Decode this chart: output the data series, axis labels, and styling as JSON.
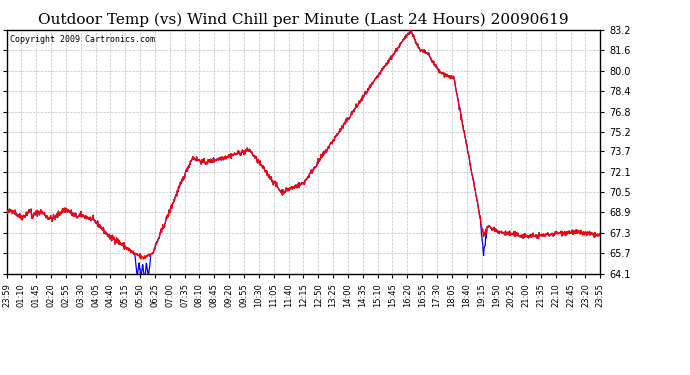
{
  "title": "Outdoor Temp (vs) Wind Chill per Minute (Last 24 Hours) 20090619",
  "copyright": "Copyright 2009 Cartronics.com",
  "yticks": [
    64.1,
    65.7,
    67.3,
    68.9,
    70.5,
    72.1,
    73.7,
    75.2,
    76.8,
    78.4,
    80.0,
    81.6,
    83.2
  ],
  "ymin": 64.1,
  "ymax": 83.2,
  "background_color": "#ffffff",
  "plot_bg_color": "#ffffff",
  "grid_color": "#bbbbbb",
  "line_color_red": "#ff0000",
  "line_color_blue": "#0000ff",
  "title_fontsize": 11,
  "xtick_labels": [
    "23:59",
    "01:10",
    "01:45",
    "02:20",
    "02:55",
    "03:30",
    "04:05",
    "04:40",
    "05:15",
    "05:50",
    "06:25",
    "07:00",
    "07:35",
    "08:10",
    "08:45",
    "09:20",
    "09:55",
    "10:30",
    "11:05",
    "11:40",
    "12:15",
    "12:50",
    "13:25",
    "14:00",
    "14:35",
    "15:10",
    "15:45",
    "16:20",
    "16:55",
    "17:30",
    "18:05",
    "18:40",
    "19:15",
    "19:50",
    "20:25",
    "21:00",
    "21:35",
    "22:10",
    "22:45",
    "23:20",
    "23:55"
  ]
}
